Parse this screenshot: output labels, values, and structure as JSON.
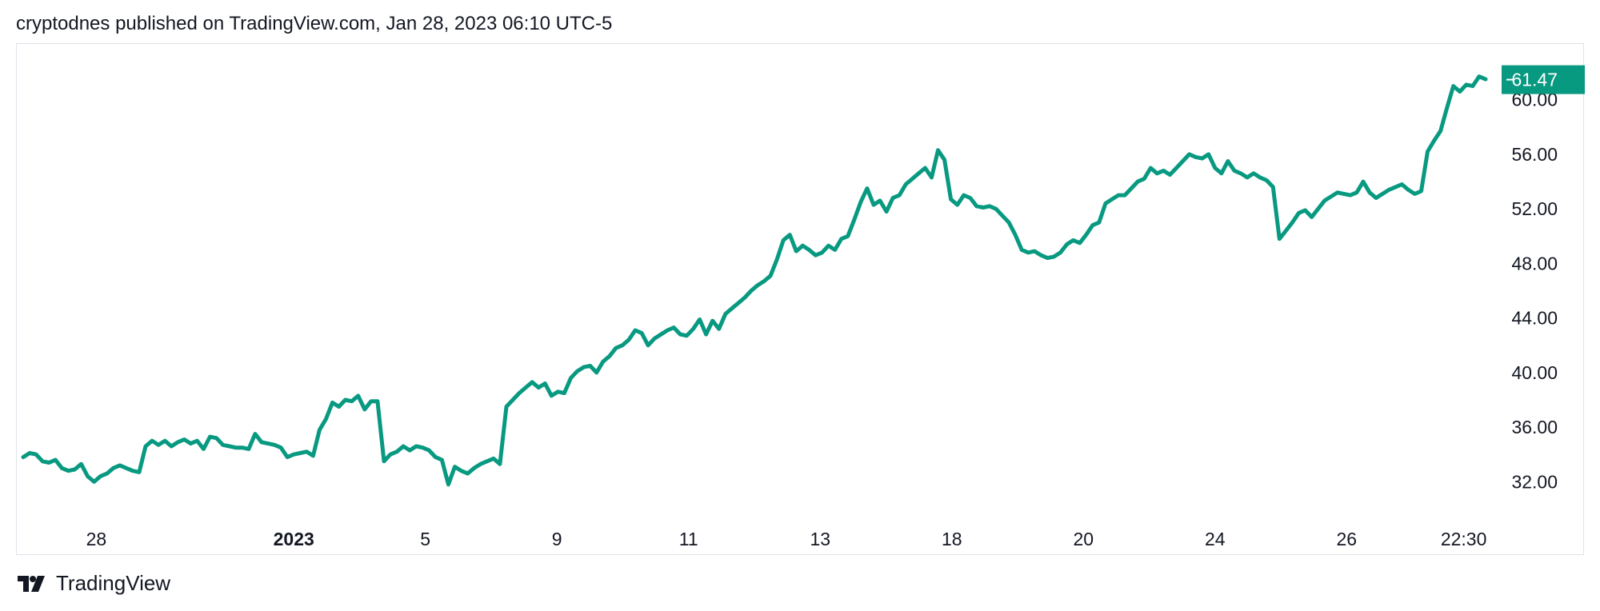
{
  "header": {
    "publisher_text": "cryptodnes published on TradingView.com, Jan 28, 2023 06:10 UTC-5"
  },
  "footer": {
    "brand": "TradingView",
    "logo_icon": "tradingview-logo-icon"
  },
  "colors": {
    "line": "#089981",
    "price_tag_bg": "#089981",
    "grid_border": "#e0e3eb"
  },
  "chart_data": {
    "type": "line",
    "y_ticks": [
      "32.00",
      "36.00",
      "40.00",
      "44.00",
      "48.00",
      "52.00",
      "56.00",
      "60.00"
    ],
    "x_ticks": [
      {
        "label": "28",
        "pos": 0.05,
        "bold": false
      },
      {
        "label": "2023",
        "pos": 0.185,
        "bold": true
      },
      {
        "label": "5",
        "pos": 0.275,
        "bold": false
      },
      {
        "label": "9",
        "pos": 0.365,
        "bold": false
      },
      {
        "label": "11",
        "pos": 0.455,
        "bold": false
      },
      {
        "label": "13",
        "pos": 0.545,
        "bold": false
      },
      {
        "label": "18",
        "pos": 0.635,
        "bold": false
      },
      {
        "label": "20",
        "pos": 0.725,
        "bold": false
      },
      {
        "label": "24",
        "pos": 0.815,
        "bold": false
      },
      {
        "label": "26",
        "pos": 0.905,
        "bold": false
      },
      {
        "label": "22:30",
        "pos": 0.985,
        "bold": false
      }
    ],
    "ylim": [
      29.5,
      63.5
    ],
    "last_price": 61.47,
    "last_price_label": "61.47",
    "values": [
      33.8,
      34.1,
      34.0,
      33.5,
      33.4,
      33.6,
      33.0,
      32.8,
      32.9,
      33.3,
      32.4,
      32.0,
      32.4,
      32.6,
      33.0,
      33.2,
      33.0,
      32.8,
      32.7,
      34.6,
      35.0,
      34.7,
      35.0,
      34.6,
      34.9,
      35.1,
      34.8,
      35.0,
      34.4,
      35.3,
      35.2,
      34.7,
      34.6,
      34.5,
      34.5,
      34.4,
      35.5,
      34.9,
      34.8,
      34.7,
      34.5,
      33.8,
      34.0,
      34.1,
      34.2,
      33.9,
      35.8,
      36.6,
      37.8,
      37.5,
      38.0,
      37.9,
      38.3,
      37.3,
      37.9,
      37.9,
      33.5,
      34.0,
      34.2,
      34.6,
      34.3,
      34.6,
      34.5,
      34.3,
      33.8,
      33.6,
      31.8,
      33.1,
      32.8,
      32.6,
      33.0,
      33.3,
      33.5,
      33.7,
      33.3,
      37.5,
      38.0,
      38.5,
      38.9,
      39.3,
      38.9,
      39.2,
      38.3,
      38.6,
      38.5,
      39.6,
      40.1,
      40.4,
      40.5,
      40.0,
      40.8,
      41.2,
      41.8,
      42.0,
      42.4,
      43.1,
      42.9,
      42.0,
      42.5,
      42.8,
      43.1,
      43.3,
      42.8,
      42.7,
      43.2,
      43.9,
      42.8,
      43.8,
      43.2,
      44.3,
      44.7,
      45.1,
      45.5,
      46.0,
      46.4,
      46.7,
      47.1,
      48.3,
      49.7,
      50.1,
      48.9,
      49.3,
      49.0,
      48.6,
      48.8,
      49.3,
      49.0,
      49.8,
      50.0,
      51.2,
      52.5,
      53.5,
      52.3,
      52.6,
      51.8,
      52.8,
      53.0,
      53.8,
      54.2,
      54.6,
      55.0,
      54.3,
      56.3,
      55.6,
      52.7,
      52.3,
      53.0,
      52.8,
      52.2,
      52.1,
      52.2,
      52.0,
      51.5,
      51.0,
      50.1,
      49.0,
      48.8,
      48.9,
      48.6,
      48.4,
      48.5,
      48.8,
      49.4,
      49.7,
      49.5,
      50.1,
      50.8,
      51.0,
      52.4,
      52.7,
      53.0,
      53.0,
      53.5,
      54.0,
      54.2,
      55.0,
      54.6,
      54.8,
      54.5,
      55.0,
      55.5,
      56.0,
      55.8,
      55.7,
      56.0,
      55.0,
      54.6,
      55.5,
      54.8,
      54.6,
      54.3,
      54.6,
      54.3,
      54.1,
      53.6,
      49.8,
      50.4,
      51.0,
      51.7,
      51.9,
      51.4,
      52.0,
      52.6,
      52.9,
      53.2,
      53.1,
      53.0,
      53.2,
      54.0,
      53.2,
      52.8,
      53.1,
      53.4,
      53.6,
      53.8,
      53.4,
      53.1,
      53.3,
      56.2,
      57.0,
      57.7,
      59.4,
      61.0,
      60.6,
      61.1,
      61.0,
      61.7,
      61.5
    ]
  }
}
